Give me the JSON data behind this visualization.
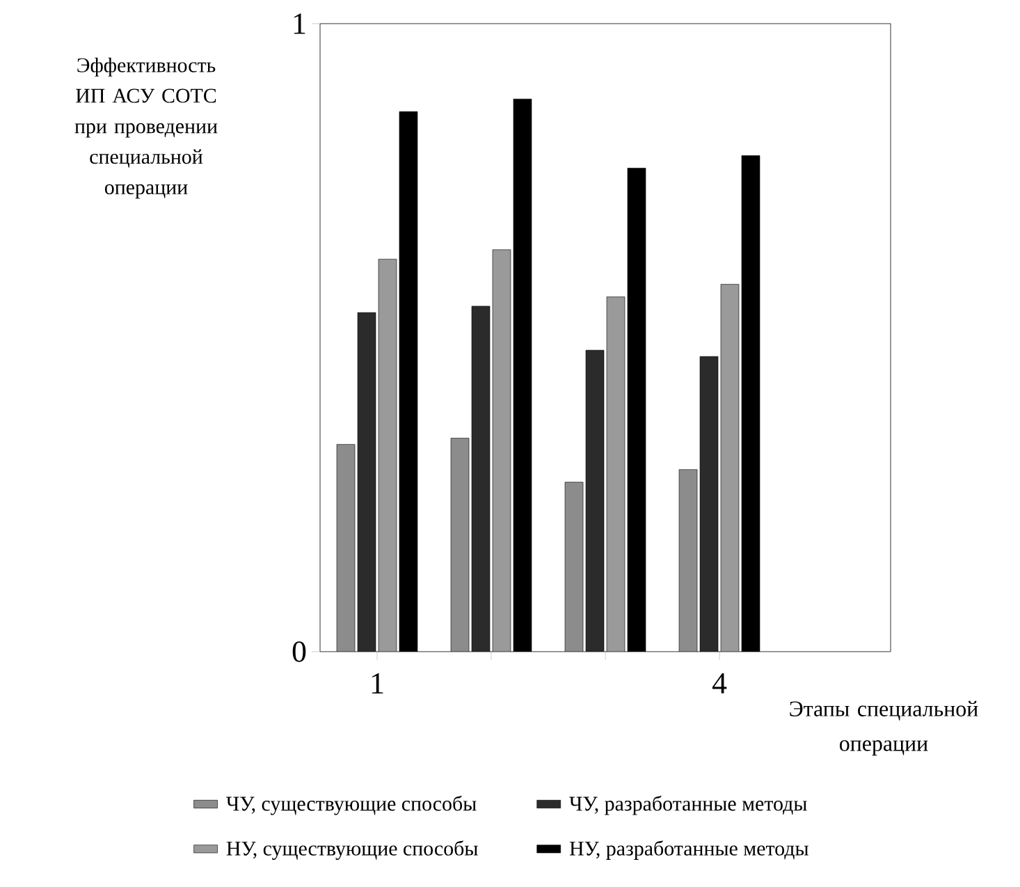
{
  "chart_data": {
    "type": "bar",
    "ylabel": "Эффективность ИП АСУ СОТС при проведении специальной операции",
    "xlabel": "Этапы специальной операции",
    "categories": [
      "1",
      null,
      null,
      "4"
    ],
    "ylim": [
      0,
      1
    ],
    "yticks": [
      0,
      1
    ],
    "series": [
      {
        "name": "ЧУ, существующие способы",
        "color": "#8c8c8c",
        "values": [
          0.33,
          0.34,
          0.27,
          0.29
        ]
      },
      {
        "name": "ЧУ, разработанные методы",
        "color": "#2b2b2b",
        "values": [
          0.54,
          0.55,
          0.48,
          0.47
        ]
      },
      {
        "name": "НУ, существующие способы",
        "color": "#9a9a9a",
        "values": [
          0.625,
          0.64,
          0.565,
          0.585
        ]
      },
      {
        "name": "НУ, разработанные методы",
        "color": "#000000",
        "values": [
          0.86,
          0.88,
          0.77,
          0.79
        ]
      }
    ],
    "legend": "bottom",
    "grid": false
  }
}
